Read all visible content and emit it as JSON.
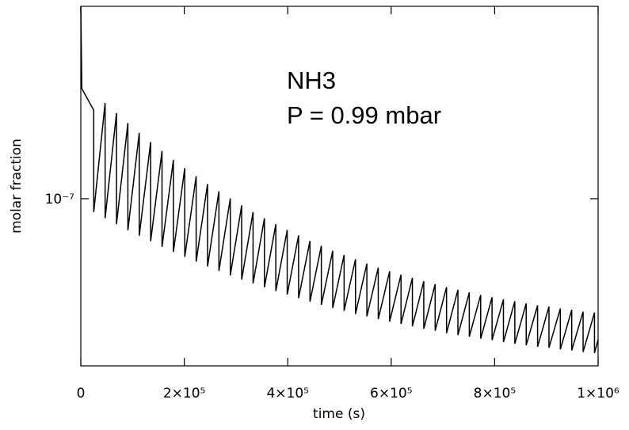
{
  "chart_data": {
    "type": "line",
    "annotations": [
      "NH3",
      "P = 0.99 mbar"
    ],
    "xlabel": "time (s)",
    "ylabel": "molar fraction",
    "color": "#000000",
    "ylog": true,
    "xlim": [
      0,
      1000000
    ],
    "ylim": [
      6e-08,
      1.8e-07
    ],
    "xticks": [
      0,
      {
        "value": 200000,
        "label": "2×10⁵"
      },
      {
        "value": 400000,
        "label": "4×10⁵"
      },
      {
        "value": 600000,
        "label": "6×10⁵"
      },
      {
        "value": 800000,
        "label": "8×10⁵"
      },
      {
        "value": 1000000,
        "label": "1×10⁶"
      }
    ],
    "yticks": [
      {
        "value": 1e-07,
        "label": "10⁻⁷"
      }
    ],
    "x": [
      0,
      2000,
      25000,
      25000,
      47000,
      47000,
      69000,
      69000,
      91000,
      91000,
      113000,
      113000,
      135000,
      135000,
      157000,
      157000,
      179000,
      179000,
      201000,
      201000,
      223000,
      223000,
      245000,
      245000,
      267000,
      267000,
      289000,
      289000,
      311000,
      311000,
      333000,
      333000,
      355000,
      355000,
      377000,
      377000,
      399000,
      399000,
      421000,
      421000,
      443000,
      443000,
      465000,
      465000,
      487000,
      487000,
      509000,
      509000,
      531000,
      531000,
      553000,
      553000,
      575000,
      575000,
      597000,
      597000,
      619000,
      619000,
      641000,
      641000,
      663000,
      663000,
      685000,
      685000,
      707000,
      707000,
      729000,
      729000,
      751000,
      751000,
      773000,
      773000,
      795000,
      795000,
      817000,
      817000,
      839000,
      839000,
      861000,
      861000,
      883000,
      883000,
      905000,
      905000,
      927000,
      927000,
      949000,
      949000,
      971000,
      971000,
      993000,
      993000,
      1000000
    ],
    "values": [
      1.8e-07,
      1.4e-07,
      1.31e-07,
      9.6e-08,
      1.34e-07,
      9.42e-08,
      1.299e-07,
      9.25e-08,
      1.26e-07,
      9.08e-08,
      1.223e-07,
      8.93e-08,
      1.189e-07,
      8.78e-08,
      1.157e-07,
      8.63e-08,
      1.126e-07,
      8.5e-08,
      1.098e-07,
      8.37e-08,
      1.071e-07,
      8.25e-08,
      1.046e-07,
      8.13e-08,
      1.023e-07,
      8.02e-08,
      1.001e-07,
      7.91e-08,
      9.8e-08,
      7.81e-08,
      9.6e-08,
      7.72e-08,
      9.42e-08,
      7.63e-08,
      9.25e-08,
      7.54e-08,
      9.09e-08,
      7.46e-08,
      8.94e-08,
      7.38e-08,
      8.79e-08,
      7.3e-08,
      8.66e-08,
      7.23e-08,
      8.53e-08,
      7.16e-08,
      8.42e-08,
      7.1e-08,
      8.31e-08,
      7.03e-08,
      8.2e-08,
      6.98e-08,
      8.1e-08,
      6.92e-08,
      8.01e-08,
      6.87e-08,
      7.93e-08,
      6.82e-08,
      7.85e-08,
      6.77e-08,
      7.77e-08,
      6.72e-08,
      7.7e-08,
      6.68e-08,
      7.63e-08,
      6.63e-08,
      7.57e-08,
      6.59e-08,
      7.51e-08,
      6.56e-08,
      7.45e-08,
      6.52e-08,
      7.4e-08,
      6.49e-08,
      7.35e-08,
      6.45e-08,
      7.31e-08,
      6.42e-08,
      7.26e-08,
      6.39e-08,
      7.22e-08,
      6.36e-08,
      7.19e-08,
      6.34e-08,
      7.15e-08,
      6.31e-08,
      7.12e-08,
      6.29e-08,
      7.08e-08,
      6.26e-08,
      7.06e-08,
      6.24e-08,
      6.5e-08
    ]
  }
}
